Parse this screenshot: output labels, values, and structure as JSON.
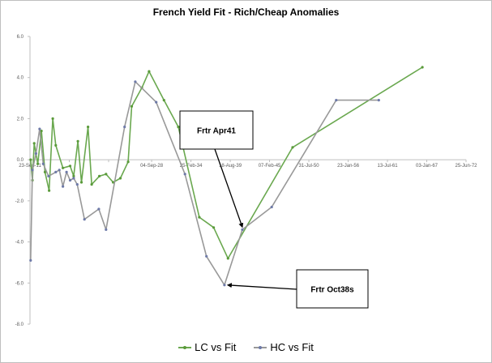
{
  "chart_data": {
    "type": "line",
    "title": "French Yield Fit - Rich/Cheap Anomalies",
    "xlabel": "",
    "ylabel": "",
    "x_axis_type": "date",
    "xlim": [
      "2011-09-23",
      "2072-06-25"
    ],
    "ylim": [
      -8.0,
      6.0
    ],
    "y_ticks": [
      6.0,
      4.0,
      2.0,
      0.0,
      -2.0,
      -4.0,
      -6.0,
      -8.0
    ],
    "y_tick_labels": [
      "6.0",
      "4.0",
      "2.0",
      "0.0",
      "-2.0",
      "-4.0",
      "-6.0",
      "-8.0"
    ],
    "x_ticks": [
      "2011-09-23",
      "2017-03-16",
      "2022-09-06",
      "2028-09-04",
      "2034-02-25",
      "2039-08-18",
      "2045-02-07",
      "2050-07-31",
      "2056-01-23",
      "2061-07-13",
      "2067-01-03",
      "2072-06-25"
    ],
    "x_tick_labels": [
      "23-Sep-11",
      "",
      "",
      "04-Sep-28",
      "25-Feb-34",
      "18-Aug-39",
      "07-Feb-45",
      "31-Jul-50",
      "23-Jan-56",
      "13-Jul-61",
      "03-Jan-67",
      "25-Jun-72"
    ],
    "grid": false,
    "legend_position": "bottom",
    "series": [
      {
        "name": "LC vs Fit",
        "color": "#5a9a3a",
        "points": [
          [
            "2011-10-25",
            0.0
          ],
          [
            "2012-01-25",
            -1.0
          ],
          [
            "2012-04-25",
            0.8
          ],
          [
            "2012-10-25",
            -0.2
          ],
          [
            "2013-04-25",
            1.4
          ],
          [
            "2013-10-25",
            -0.6
          ],
          [
            "2014-05-25",
            -1.5
          ],
          [
            "2014-11-25",
            2.0
          ],
          [
            "2015-04-25",
            0.7
          ],
          [
            "2016-04-25",
            -0.4
          ],
          [
            "2017-04-25",
            -0.3
          ],
          [
            "2017-10-25",
            -0.8
          ],
          [
            "2018-05-25",
            0.9
          ],
          [
            "2018-11-25",
            -1.1
          ],
          [
            "2019-10-25",
            1.6
          ],
          [
            "2020-04-25",
            -1.2
          ],
          [
            "2021-05-25",
            -0.8
          ],
          [
            "2022-04-25",
            -0.7
          ],
          [
            "2023-04-25",
            -1.1
          ],
          [
            "2024-04-25",
            -0.9
          ],
          [
            "2025-05-25",
            -0.1
          ],
          [
            "2025-11-25",
            2.6
          ],
          [
            "2027-04-25",
            3.5
          ],
          [
            "2028-04-25",
            4.3
          ],
          [
            "2030-05-25",
            2.9
          ],
          [
            "2032-05-25",
            1.6
          ],
          [
            "2035-04-25",
            -2.8
          ],
          [
            "2037-04-25",
            -3.3
          ],
          [
            "2039-04-25",
            -4.8
          ],
          [
            "2048-04-25",
            0.6
          ],
          [
            "2066-05-25",
            4.5
          ]
        ]
      },
      {
        "name": "HC vs Fit",
        "color": "#6e7aa8",
        "points": [
          [
            "2011-10-25",
            -4.9
          ],
          [
            "2012-01-25",
            -0.5
          ],
          [
            "2012-07-25",
            0.3
          ],
          [
            "2013-01-25",
            1.5
          ],
          [
            "2013-07-25",
            -0.2
          ],
          [
            "2014-04-25",
            -0.8
          ],
          [
            "2015-04-25",
            -0.6
          ],
          [
            "2015-10-25",
            -0.5
          ],
          [
            "2016-04-25",
            -1.3
          ],
          [
            "2016-10-25",
            -0.6
          ],
          [
            "2017-04-25",
            -1.0
          ],
          [
            "2017-10-25",
            -0.9
          ],
          [
            "2018-04-25",
            -1.2
          ],
          [
            "2019-04-25",
            -2.9
          ],
          [
            "2021-04-25",
            -2.4
          ],
          [
            "2022-04-25",
            -3.4
          ],
          [
            "2024-11-25",
            1.6
          ],
          [
            "2026-05-25",
            3.8
          ],
          [
            "2029-04-25",
            2.8
          ],
          [
            "2033-04-25",
            -0.7
          ],
          [
            "2036-04-25",
            -4.7
          ],
          [
            "2038-10-25",
            -6.1
          ],
          [
            "2041-04-25",
            -3.4
          ],
          [
            "2045-05-25",
            -2.3
          ],
          [
            "2054-05-25",
            2.9
          ],
          [
            "2060-04-25",
            2.9
          ]
        ]
      }
    ],
    "annotations": [
      {
        "text": "Frtr Apr41",
        "target_series": "HC vs Fit",
        "target_x": "2041-04-25",
        "target_y": -3.4
      },
      {
        "text": "Frtr Oct38s",
        "target_series": "HC vs Fit",
        "target_x": "2038-10-25",
        "target_y": -6.1
      }
    ]
  }
}
